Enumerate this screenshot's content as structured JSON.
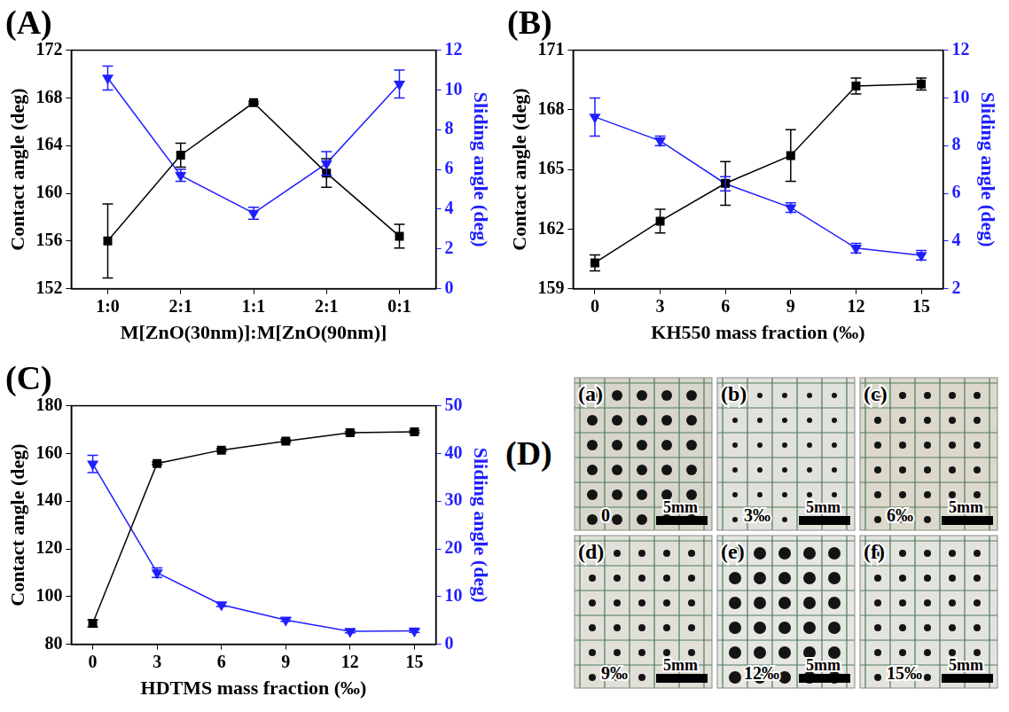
{
  "chart_data": [
    {
      "type": "line",
      "panel": "(A)",
      "x_label": "M[ZnO(30nm)]:M[ZnO(90nm)]",
      "y_label": "Contact angle (deg)",
      "y2_label": "Sliding angle (deg)",
      "categories": [
        "1:0",
        "2:1",
        "1:1",
        "2:1",
        "0:1"
      ],
      "series": [
        {
          "name": "Contact angle (deg)",
          "color": "#000000",
          "marker": "square",
          "line_style": "solid",
          "values": [
            156.0,
            163.2,
            167.6,
            161.7,
            156.4
          ],
          "errors": [
            3.1,
            1.0,
            0.1,
            1.2,
            1.0
          ]
        },
        {
          "name": "Sliding angle (deg)",
          "color": "#1f1fff",
          "marker": "triangle_down",
          "line_style": "solid",
          "axis": "y2",
          "values": [
            10.6,
            5.7,
            3.8,
            6.3,
            10.3
          ],
          "errors": [
            0.6,
            0.3,
            0.3,
            0.6,
            0.7
          ]
        }
      ],
      "ylim": [
        152,
        172
      ],
      "yticks": [
        152,
        156,
        160,
        164,
        168,
        172
      ],
      "y2lim": [
        0,
        12
      ],
      "y2ticks": [
        0,
        2,
        4,
        6,
        8,
        10,
        12
      ],
      "grid": false
    },
    {
      "type": "line",
      "panel": "(B)",
      "x_label": "KH550 mass fraction (‰)",
      "y_label": "Contact angle (deg)",
      "y2_label": "Sliding angle (deg)",
      "x": [
        0,
        3,
        6,
        9,
        12,
        15
      ],
      "series": [
        {
          "name": "Contact angle (deg)",
          "color": "#000000",
          "marker": "square",
          "line_style": "solid",
          "values": [
            160.3,
            162.4,
            164.3,
            165.7,
            169.2,
            169.3
          ],
          "errors": [
            0.4,
            0.6,
            1.1,
            1.3,
            0.4,
            0.3
          ]
        },
        {
          "name": "Sliding angle (deg)",
          "color": "#1f1fff",
          "marker": "triangle_down",
          "line_style": "solid",
          "axis": "y2",
          "values": [
            9.2,
            8.2,
            6.4,
            5.4,
            3.7,
            3.4
          ],
          "errors": [
            0.8,
            0.2,
            0.3,
            0.2,
            0.2,
            0.2
          ]
        }
      ],
      "xlim": [
        -1,
        16
      ],
      "xticks": [
        0,
        3,
        6,
        9,
        12,
        15
      ],
      "ylim": [
        159,
        171
      ],
      "yticks": [
        159,
        162,
        165,
        168,
        171
      ],
      "y2lim": [
        2,
        12
      ],
      "y2ticks": [
        2,
        4,
        6,
        8,
        10,
        12
      ],
      "grid": false
    },
    {
      "type": "line",
      "panel": "(C)",
      "x_label": "HDTMS mass fraction (‰)",
      "y_label": "Contact angle (deg)",
      "y2_label": "Sliding angle (deg)",
      "x": [
        0,
        3,
        6,
        9,
        12,
        15
      ],
      "series": [
        {
          "name": "Contact angle (deg)",
          "color": "#000000",
          "marker": "square",
          "line_style": "solid",
          "values": [
            88.8,
            155.8,
            161.4,
            165.2,
            168.7,
            169.1
          ],
          "errors": [
            1.5,
            0.5,
            0.5,
            0.5,
            0.5,
            0.5
          ]
        },
        {
          "name": "Sliding angle (deg)",
          "color": "#1f1fff",
          "marker": "triangle_down",
          "line_style": "solid",
          "axis": "y2",
          "values": [
            37.8,
            15.0,
            8.3,
            5.1,
            2.7,
            2.8
          ],
          "errors": [
            1.8,
            1.0,
            0.4,
            0.3,
            0.3,
            0.3
          ]
        }
      ],
      "xlim": [
        -1,
        16
      ],
      "xticks": [
        0,
        3,
        6,
        9,
        12,
        15
      ],
      "ylim": [
        80,
        180
      ],
      "yticks": [
        80,
        100,
        120,
        140,
        160,
        180
      ],
      "y2lim": [
        0,
        50
      ],
      "y2ticks": [
        0,
        10,
        20,
        30,
        40,
        50
      ],
      "grid": false
    }
  ],
  "image_panel": {
    "panel": "(D)",
    "scale_bar": "5mm",
    "images": [
      {
        "label": "(a)",
        "caption": "0"
      },
      {
        "label": "(b)",
        "caption": "3‰"
      },
      {
        "label": "(c)",
        "caption": "6‰"
      },
      {
        "label": "(d)",
        "caption": "9‰"
      },
      {
        "label": "(e)",
        "caption": "12‰"
      },
      {
        "label": "(f)",
        "caption": "15‰"
      }
    ]
  }
}
